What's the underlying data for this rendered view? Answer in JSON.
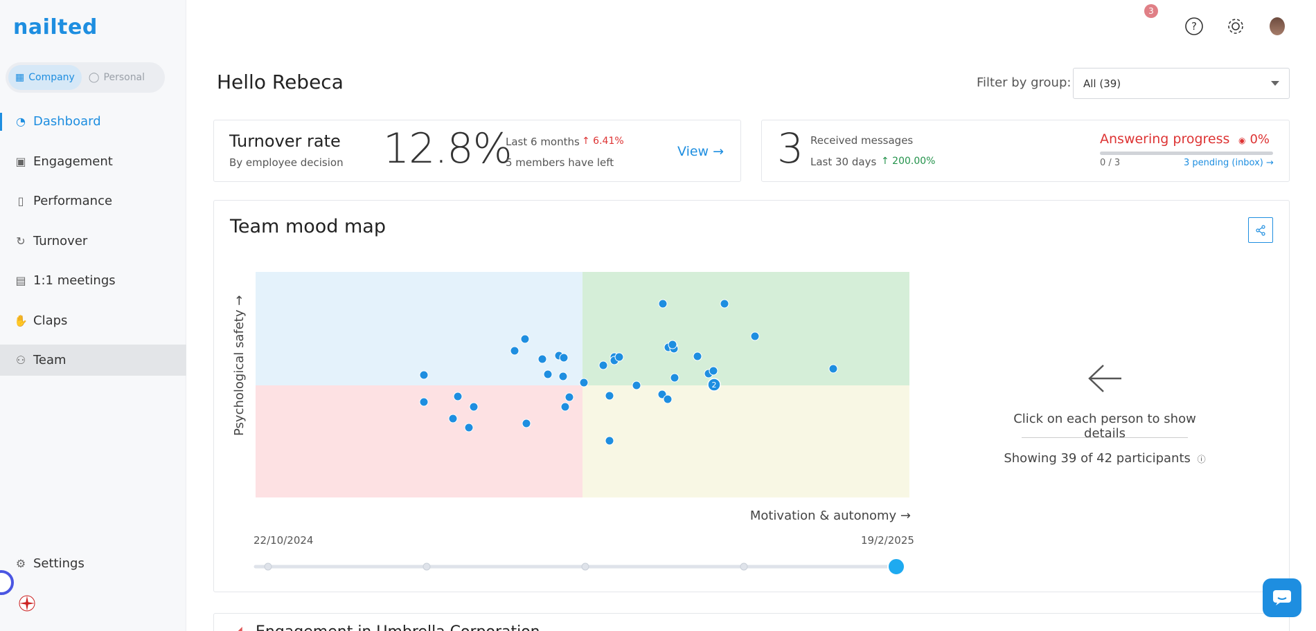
{
  "app": {
    "logo": "nailted",
    "mode": {
      "company": "Company",
      "personal": "Personal"
    },
    "nav": [
      {
        "label": "Dashboard",
        "icon": "dashboard-icon"
      },
      {
        "label": "Engagement",
        "icon": "camera-icon"
      },
      {
        "label": "Performance",
        "icon": "badge-icon"
      },
      {
        "label": "Turnover",
        "icon": "refresh-icon"
      },
      {
        "label": "1:1 meetings",
        "icon": "calendar-icon"
      },
      {
        "label": "Claps",
        "icon": "clap-icon"
      },
      {
        "label": "Team",
        "icon": "team-icon"
      }
    ],
    "settings": "Settings",
    "notifications_count": "3"
  },
  "header": {
    "greeting": "Hello Rebeca",
    "filter_label": "Filter by group:",
    "filter_value": "All (39)"
  },
  "turnover": {
    "title": "Turnover rate",
    "subtitle": "By employee decision",
    "value": "12.8%",
    "period": "Last 6 months",
    "change": "↑ 6.41%",
    "members_left": "5 members have left",
    "view": "View →"
  },
  "messages": {
    "count": "3",
    "label": "Received messages",
    "period": "Last 30 days",
    "change": "↑ 200.00%",
    "progress_title": "Answering progress",
    "progress_pct": "0%",
    "progress_fraction": 0,
    "progress_count": "0 / 3",
    "pending_link": "3 pending (inbox) →"
  },
  "mood_map": {
    "title": "Team mood map",
    "x_label": "Motivation & autonomy →",
    "y_label": "Psychological safety →",
    "date_start": "22/10/2024",
    "date_end": "19/2/2025",
    "cluster_label": "2",
    "hint": "Click on each person to show details",
    "showing": "Showing 39 of 42 participants",
    "quadrant_colors": {
      "top_left": "#e4f2fb",
      "top_right": "#d5eed8",
      "bottom_left": "#fde1e3",
      "bottom_right": "#f8f7e4"
    },
    "dot_color": "#1e8ee0",
    "timeline_steps": 5,
    "timeline_selected": 5
  },
  "next_section": {
    "title": "Engagement in Umbrella Corporation"
  }
}
